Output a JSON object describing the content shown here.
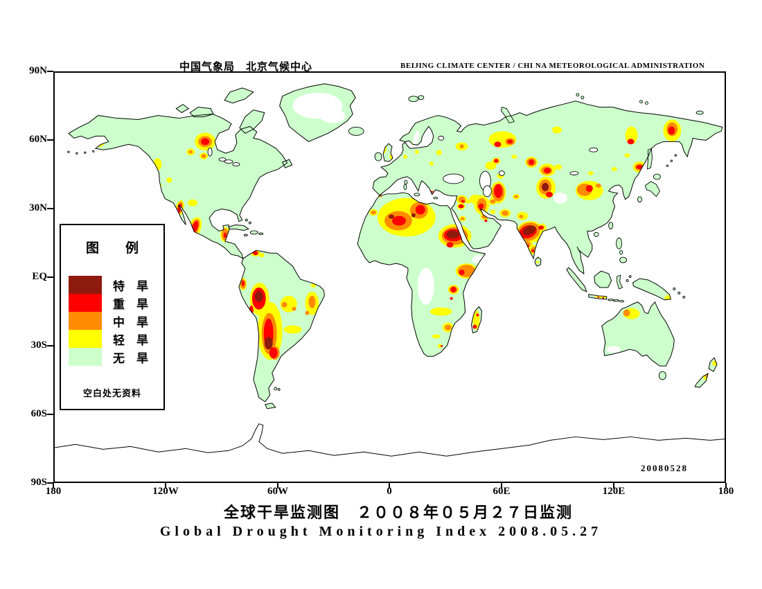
{
  "header": {
    "left": "中国气象局　北京气候中心",
    "right": "BEIJING CLIMATE CENTER / CHI NA METEOROLOGICAL ADMINISTRATION"
  },
  "footer": {
    "title_cn": "全球干旱监测图　２００８年０５月２７日监测",
    "title_en": "Global Drought Monitoring Index  2008.05.27"
  },
  "map": {
    "date_stamp": "20080528",
    "lat_labels": [
      "90N",
      "60N",
      "30N",
      "EQ",
      "30S",
      "60S",
      "90S"
    ],
    "lon_labels": [
      "180",
      "120W",
      "60W",
      "0",
      "60E",
      "120E",
      "180"
    ],
    "colors": {
      "extreme": "#8e1a0e",
      "severe": "#fe0000",
      "moderate": "#ff8c00",
      "light": "#ffff00",
      "none": "#ccffcc",
      "no_data": "#ffffff",
      "ocean": "#ffffff",
      "outline": "#000000"
    },
    "drought_spots": {
      "light": [
        [
          63,
          102,
          9,
          6
        ],
        [
          149,
          133,
          6,
          9
        ],
        [
          218,
          100,
          15,
          13
        ],
        [
          197,
          115,
          6,
          5
        ],
        [
          216,
          121,
          6,
          5
        ],
        [
          166,
          156,
          4,
          4
        ],
        [
          152,
          164,
          3,
          3
        ],
        [
          200,
          189,
          7,
          5
        ],
        [
          203,
          225,
          9,
          16,
          20
        ],
        [
          181,
          197,
          6,
          12,
          15
        ],
        [
          247,
          235,
          7,
          11
        ],
        [
          291,
          262,
          7,
          5
        ],
        [
          300,
          265,
          4,
          3
        ],
        [
          273,
          307,
          5,
          9
        ],
        [
          297,
          329,
          14,
          24
        ],
        [
          312,
          375,
          18,
          42
        ],
        [
          339,
          336,
          12,
          12
        ],
        [
          373,
          335,
          10,
          17
        ],
        [
          375,
          309,
          4,
          3
        ],
        [
          345,
          373,
          13,
          6
        ],
        [
          510,
          210,
          42,
          28
        ],
        [
          462,
          203,
          6,
          5
        ],
        [
          535,
          181,
          6,
          4
        ],
        [
          571,
          184,
          5,
          3
        ],
        [
          523,
          176,
          4,
          3
        ],
        [
          580,
          237,
          24,
          17
        ],
        [
          589,
          194,
          6,
          5
        ],
        [
          591,
          212,
          5,
          4
        ],
        [
          597,
          288,
          16,
          11
        ],
        [
          578,
          315,
          8,
          7
        ],
        [
          560,
          347,
          16,
          6
        ],
        [
          570,
          370,
          8,
          7
        ],
        [
          553,
          383,
          6,
          3
        ],
        [
          558,
          397,
          3,
          3
        ],
        [
          611,
          359,
          5,
          14
        ],
        [
          475,
          110,
          6,
          8
        ],
        [
          489,
          122,
          4,
          4
        ],
        [
          516,
          105,
          4,
          4
        ],
        [
          525,
          115,
          3,
          3
        ],
        [
          536,
          99,
          4,
          4
        ],
        [
          508,
          122,
          3,
          3
        ],
        [
          590,
          107,
          9,
          6
        ],
        [
          557,
          116,
          4,
          4
        ],
        [
          546,
          132,
          3,
          3
        ],
        [
          590,
          184,
          8,
          6
        ],
        [
          610,
          184,
          9,
          7
        ],
        [
          619,
          192,
          11,
          14
        ],
        [
          599,
          187,
          4,
          3
        ],
        [
          623,
          209,
          6,
          5
        ],
        [
          635,
          202,
          4,
          3
        ],
        [
          653,
          204,
          8,
          6
        ],
        [
          643,
          174,
          11,
          16
        ],
        [
          635,
          187,
          6,
          5
        ],
        [
          632,
          135,
          8,
          6
        ],
        [
          640,
          128,
          6,
          5
        ],
        [
          646,
          150,
          5,
          4
        ],
        [
          649,
          97,
          20,
          12
        ],
        [
          666,
          122,
          4,
          3
        ],
        [
          728,
          83,
          7,
          5
        ],
        [
          691,
          130,
          9,
          8
        ],
        [
          714,
          141,
          12,
          9
        ],
        [
          730,
          137,
          5,
          4
        ],
        [
          712,
          167,
          14,
          16
        ],
        [
          669,
          180,
          5,
          4
        ],
        [
          678,
          208,
          8,
          6
        ],
        [
          775,
          171,
          20,
          14
        ],
        [
          777,
          146,
          4,
          3
        ],
        [
          811,
          140,
          4,
          3
        ],
        [
          830,
          120,
          4,
          3
        ],
        [
          848,
          137,
          10,
          8
        ],
        [
          895,
          84,
          13,
          16
        ],
        [
          836,
          91,
          9,
          13
        ],
        [
          707,
          227,
          6,
          8
        ],
        [
          687,
          232,
          20,
          16,
          -20
        ],
        [
          701,
          242,
          6,
          5
        ],
        [
          695,
          257,
          8,
          7
        ],
        [
          685,
          249,
          8,
          6
        ],
        [
          700,
          275,
          2,
          2
        ],
        [
          778,
          312,
          3,
          3
        ],
        [
          773,
          302,
          2,
          2
        ],
        [
          795,
          325,
          12,
          2.5
        ],
        [
          807,
          328,
          6,
          2
        ],
        [
          810,
          309,
          2,
          4
        ],
        [
          890,
          327,
          6,
          4
        ],
        [
          836,
          350,
          12,
          8
        ],
        [
          945,
          440,
          6,
          10,
          -35
        ],
        [
          957,
          422,
          4,
          4
        ]
      ],
      "moderate": [
        [
          63,
          102,
          5,
          3
        ],
        [
          218,
          100,
          10,
          8
        ],
        [
          197,
          115,
          3,
          2.5
        ],
        [
          216,
          121,
          3.5,
          3
        ],
        [
          203,
          225,
          6,
          13,
          20
        ],
        [
          181,
          197,
          4,
          10,
          15
        ],
        [
          247,
          235,
          5,
          9
        ],
        [
          273,
          307,
          4,
          7
        ],
        [
          311,
          379,
          11,
          30
        ],
        [
          333,
          337,
          4,
          4
        ],
        [
          347,
          343,
          3,
          3
        ],
        [
          373,
          333,
          5,
          9
        ],
        [
          366,
          349,
          3,
          3
        ],
        [
          319,
          407,
          7,
          10
        ],
        [
          498,
          215,
          20,
          14
        ],
        [
          528,
          200,
          13,
          12
        ],
        [
          462,
          203,
          4,
          3
        ],
        [
          535,
          181,
          3,
          2
        ],
        [
          472,
          179,
          2.5,
          2
        ],
        [
          523,
          176,
          2,
          2
        ],
        [
          580,
          237,
          19,
          13
        ],
        [
          591,
          212,
          3,
          2
        ],
        [
          597,
          288,
          13,
          9
        ],
        [
          578,
          315,
          6,
          5
        ],
        [
          570,
          370,
          5,
          4
        ],
        [
          590,
          184,
          5,
          4
        ],
        [
          619,
          192,
          7,
          10
        ],
        [
          623,
          209,
          4,
          3
        ],
        [
          653,
          204,
          5,
          4
        ],
        [
          643,
          174,
          9,
          13
        ],
        [
          635,
          187,
          4,
          3
        ],
        [
          640,
          128,
          4,
          3.5
        ],
        [
          660,
          100,
          7,
          5
        ],
        [
          691,
          130,
          7,
          6
        ],
        [
          713,
          142,
          8,
          6
        ],
        [
          711,
          166,
          9,
          11
        ],
        [
          669,
          180,
          3,
          2
        ],
        [
          676,
          209,
          3,
          2.5
        ],
        [
          768,
          170,
          11,
          9
        ],
        [
          788,
          164,
          4,
          3
        ],
        [
          848,
          137,
          7,
          5
        ],
        [
          895,
          82,
          8,
          10
        ],
        [
          687,
          231,
          17,
          13,
          -20
        ],
        [
          685,
          249,
          5,
          4
        ],
        [
          695,
          257,
          5,
          4
        ],
        [
          829,
          349,
          5,
          5
        ],
        [
          947,
          442,
          3,
          6,
          -35
        ],
        [
          531,
          107,
          3,
          2
        ],
        [
          590,
          107,
          3,
          3
        ]
      ],
      "severe": [
        [
          218,
          100,
          6,
          5
        ],
        [
          203,
          225,
          4,
          10,
          20
        ],
        [
          181,
          197,
          2.5,
          7,
          15
        ],
        [
          247,
          236,
          2,
          4
        ],
        [
          291,
          262,
          4,
          3
        ],
        [
          273,
          306,
          2,
          4
        ],
        [
          296,
          328,
          10,
          16
        ],
        [
          285,
          345,
          3,
          7
        ],
        [
          310,
          379,
          7,
          22
        ],
        [
          317,
          407,
          6,
          8
        ],
        [
          499,
          215,
          10,
          7
        ],
        [
          530,
          199,
          7,
          7
        ],
        [
          519,
          171,
          4,
          1.5
        ],
        [
          546,
          173,
          3,
          1.5
        ],
        [
          557,
          176,
          3,
          1.5
        ],
        [
          521,
          182,
          3,
          1.5
        ],
        [
          573,
          184,
          2,
          1.5
        ],
        [
          578,
          236,
          14,
          9
        ],
        [
          573,
          250,
          5,
          4
        ],
        [
          589,
          194,
          4,
          3
        ],
        [
          590,
          290,
          4,
          4
        ],
        [
          578,
          315,
          4,
          4
        ],
        [
          575,
          328,
          2,
          2
        ],
        [
          609,
          369,
          3,
          3
        ],
        [
          613,
          352,
          2,
          2
        ],
        [
          561,
          397,
          1.5,
          1.5
        ],
        [
          592,
          187,
          3,
          2
        ],
        [
          618,
          194,
          4,
          4
        ],
        [
          625,
          215,
          2,
          2
        ],
        [
          643,
          172,
          6,
          10
        ],
        [
          642,
          104,
          5,
          4
        ],
        [
          660,
          100,
          4,
          3
        ],
        [
          640,
          128,
          3,
          2.5
        ],
        [
          691,
          130,
          4,
          4
        ],
        [
          714,
          142,
          5,
          4
        ],
        [
          717,
          177,
          5,
          4
        ],
        [
          775,
          168,
          5,
          5
        ],
        [
          848,
          137,
          5,
          3
        ],
        [
          894,
          84,
          5,
          6
        ],
        [
          835,
          100,
          5,
          4
        ],
        [
          705,
          225,
          4,
          3
        ],
        [
          686,
          231,
          13,
          9,
          -20
        ],
        [
          685,
          252,
          3,
          2
        ],
        [
          693,
          259,
          2,
          2
        ],
        [
          788,
          326,
          1.5,
          1
        ],
        [
          795,
          327,
          1.5,
          1
        ],
        [
          807,
          328,
          2,
          1.5
        ]
      ],
      "extreme": [
        [
          296,
          325,
          6,
          8
        ],
        [
          310,
          393,
          6,
          9
        ],
        [
          488,
          209,
          4,
          3
        ],
        [
          520,
          207,
          3,
          3
        ],
        [
          577,
          235,
          9,
          6
        ],
        [
          711,
          166,
          5,
          6
        ],
        [
          688,
          229,
          10,
          6,
          -25
        ]
      ]
    },
    "no_data_patches": [
      [
        381,
        48,
        36,
        19
      ],
      [
        403,
        63,
        18,
        10
      ],
      [
        538,
        310,
        12,
        27
      ],
      [
        616,
        271,
        11,
        6
      ],
      [
        810,
        402,
        10,
        5
      ],
      [
        733,
        182,
        10,
        8
      ],
      [
        524,
        95,
        4,
        11,
        15
      ]
    ]
  },
  "legend": {
    "title": "图　　例",
    "items": [
      {
        "label": "特　旱",
        "level": "extreme"
      },
      {
        "label": "重　旱",
        "level": "severe"
      },
      {
        "label": "中　旱",
        "level": "moderate"
      },
      {
        "label": "轻　旱",
        "level": "light"
      },
      {
        "label": "无　旱",
        "level": "none"
      }
    ],
    "note": "空白处无资料"
  }
}
